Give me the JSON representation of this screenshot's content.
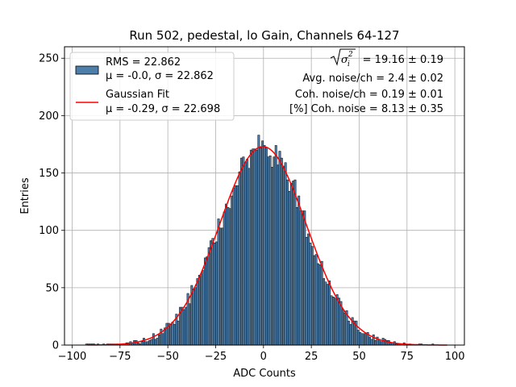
{
  "chart_data": {
    "type": "bar",
    "title": "Run 502, pedestal, lo Gain, Channels 64-127",
    "xlabel": "ADC Counts",
    "ylabel": "Entries",
    "xlim": [
      -104,
      105
    ],
    "ylim": [
      0,
      260
    ],
    "xticks": [
      -100,
      -75,
      -50,
      -25,
      0,
      25,
      50,
      75,
      100
    ],
    "xtick_labels": [
      "−100",
      "−75",
      "−50",
      "−25",
      "0",
      "25",
      "50",
      "75",
      "100"
    ],
    "yticks": [
      0,
      50,
      100,
      150,
      200,
      250
    ],
    "ytick_labels": [
      "0",
      "50",
      "100",
      "150",
      "200",
      "250"
    ],
    "grid": true,
    "legend_position": "top-left",
    "histogram": {
      "name": "RMS = 22.862",
      "name_line2": "μ = -0.0, σ = 22.862",
      "bin_width": 1,
      "bin_start": -93,
      "bin_end": 96,
      "rms": 22.862,
      "total_entries": 10000,
      "bar_color": "#4e7faa",
      "edge_color": "#000000"
    },
    "fit": {
      "name": "Gaussian Fit",
      "name_line2": "μ = -0.29, σ = 22.698",
      "type": "gaussian",
      "mu": -0.29,
      "sigma": 22.698,
      "amplitude": 173,
      "x_range": [
        -92,
        96
      ],
      "color": "#ff0000"
    },
    "annotations": {
      "line1_value": " = 19.16 ± 0.19",
      "line2": "Avg. noise/ch = 2.4 ± 0.02",
      "line3": "Coh. noise/ch = 0.19 ± 0.01",
      "line4": "[%] Coh. noise = 8.13 ± 0.35"
    }
  }
}
